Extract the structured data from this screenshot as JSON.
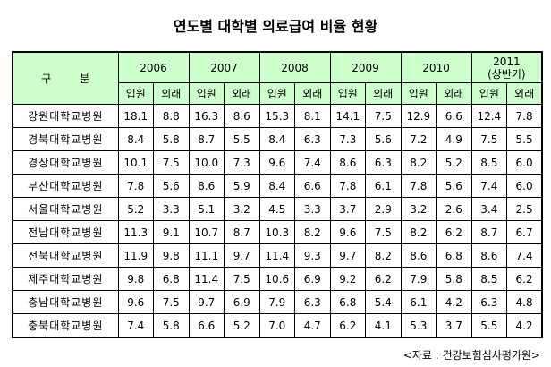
{
  "title": "연도별 대학별 의료급여 비율 현황",
  "header": {
    "category_label": "구 분",
    "years": [
      "2006",
      "2007",
      "2008",
      "2009",
      "2010"
    ],
    "year_2011_line1": "2011",
    "year_2011_line2": "(상반기)",
    "inpatient_label": "입원",
    "outpatient_label": "외래"
  },
  "rows": [
    {
      "name": "강원대학교병원",
      "values": [
        "18.1",
        "8.8",
        "16.3",
        "8.6",
        "15.3",
        "8.1",
        "14.1",
        "7.5",
        "12.9",
        "6.6",
        "12.4",
        "7.8"
      ]
    },
    {
      "name": "경북대학교병원",
      "values": [
        "8.4",
        "5.8",
        "8.7",
        "5.5",
        "8.4",
        "6.3",
        "7.3",
        "5.6",
        "7.2",
        "4.9",
        "7.5",
        "5.5"
      ]
    },
    {
      "name": "경상대학교병원",
      "values": [
        "10.1",
        "7.5",
        "10.0",
        "7.3",
        "9.6",
        "7.4",
        "8.6",
        "6.3",
        "8.2",
        "5.2",
        "8.5",
        "6.0"
      ]
    },
    {
      "name": "부산대학교병원",
      "values": [
        "7.8",
        "5.6",
        "8.6",
        "5.9",
        "8.4",
        "6.6",
        "7.8",
        "6.1",
        "7.8",
        "5.6",
        "7.4",
        "6.0"
      ]
    },
    {
      "name": "서울대학교병원",
      "values": [
        "5.2",
        "3.3",
        "5.1",
        "3.2",
        "4.5",
        "3.3",
        "3.7",
        "2.9",
        "3.2",
        "2.6",
        "3.4",
        "2.5"
      ]
    },
    {
      "name": "전남대학교병원",
      "values": [
        "11.3",
        "9.1",
        "10.7",
        "8.7",
        "10.3",
        "8.2",
        "9.6",
        "7.5",
        "8.2",
        "6.2",
        "8.7",
        "6.7"
      ]
    },
    {
      "name": "전북대학교병원",
      "values": [
        "11.9",
        "9.8",
        "11.1",
        "9.7",
        "11.4",
        "9.3",
        "9.7",
        "8.2",
        "8.6",
        "6.8",
        "8.6",
        "7.4"
      ]
    },
    {
      "name": "제주대학교병원",
      "values": [
        "9.8",
        "6.8",
        "11.4",
        "7.5",
        "10.6",
        "6.9",
        "9.2",
        "6.2",
        "7.9",
        "5.8",
        "8.5",
        "6.2"
      ]
    },
    {
      "name": "충남대학교병원",
      "values": [
        "9.6",
        "7.5",
        "9.7",
        "6.9",
        "7.9",
        "6.3",
        "6.8",
        "5.4",
        "6.1",
        "4.2",
        "6.3",
        "4.8"
      ]
    },
    {
      "name": "충북대학교병원",
      "values": [
        "7.4",
        "5.8",
        "6.6",
        "5.2",
        "7.0",
        "4.7",
        "6.2",
        "4.1",
        "5.3",
        "3.7",
        "5.5",
        "4.2"
      ]
    }
  ],
  "source": "<자료 : 건강보험심사평가원>",
  "colors": {
    "header_background": "#ccffcc",
    "border": "#000000"
  }
}
